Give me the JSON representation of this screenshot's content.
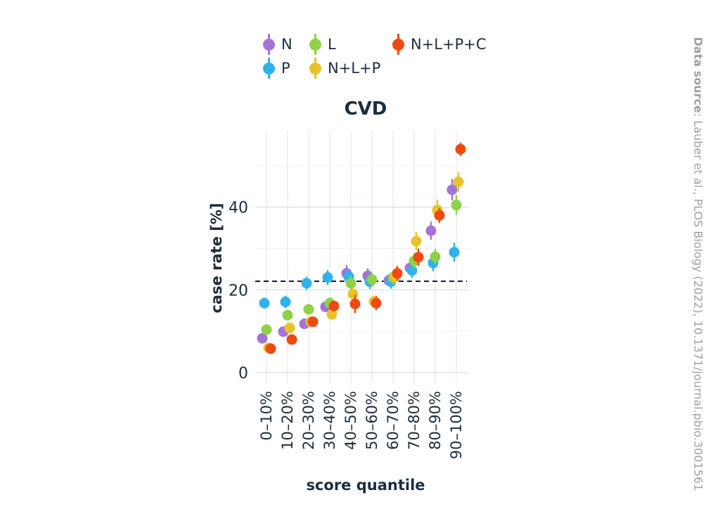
{
  "chart_data": {
    "type": "scatter",
    "title": "CVD",
    "xlabel": "score quantile",
    "ylabel": "case rate [%]",
    "categories": [
      "0–10%",
      "10–20%",
      "20–30%",
      "30–40%",
      "40–50%",
      "50–60%",
      "60–70%",
      "70–80%",
      "80–90%",
      "90–100%"
    ],
    "yticks": [
      0,
      20,
      40
    ],
    "ylim": [
      0,
      58
    ],
    "reference_line": 22.1,
    "grid": true,
    "legend_position": "top",
    "series": [
      {
        "name": "N",
        "color": "#a374d6",
        "values": [
          8.3,
          9.9,
          11.8,
          15.9,
          24.0,
          23.4,
          22.3,
          25.3,
          34.3,
          44.2
        ],
        "err": [
          0.8,
          0.8,
          0.9,
          1.2,
          2.0,
          1.8,
          1.5,
          1.7,
          2.2,
          2.6
        ]
      },
      {
        "name": "P",
        "color": "#2fb2ed",
        "values": [
          16.8,
          17.1,
          21.6,
          23.0,
          23.2,
          22.0,
          22.0,
          24.7,
          26.5,
          29.1
        ],
        "err": [
          1.3,
          1.5,
          1.6,
          1.8,
          1.8,
          1.8,
          1.7,
          1.8,
          2.0,
          2.3
        ]
      },
      {
        "name": "L",
        "color": "#8ed147",
        "values": [
          10.4,
          13.9,
          15.3,
          16.8,
          21.6,
          22.5,
          23.0,
          27.0,
          28.0,
          40.5
        ],
        "err": [
          1.1,
          1.3,
          1.3,
          1.4,
          1.8,
          1.7,
          1.6,
          1.8,
          1.9,
          2.4
        ]
      },
      {
        "name": "N+L+P",
        "color": "#e8c22a",
        "values": [
          6.0,
          10.8,
          12.3,
          14.1,
          19.0,
          17.2,
          23.2,
          31.8,
          39.3,
          46.1
        ],
        "err": [
          0.8,
          0.9,
          1.0,
          1.2,
          1.6,
          1.4,
          1.5,
          2.2,
          2.5,
          2.4
        ]
      },
      {
        "name": "N+L+P+C",
        "color": "#ef4a12",
        "values": [
          5.8,
          8.0,
          12.3,
          16.1,
          16.6,
          16.8,
          24.0,
          27.9,
          38.0,
          54.0
        ],
        "err": [
          1.2,
          1.0,
          1.0,
          1.3,
          2.2,
          1.7,
          1.8,
          2.1,
          1.8,
          1.6
        ]
      }
    ]
  },
  "source": {
    "label": "Data source",
    "text": ": Lauber et al., PLOS Biology (2022), 10.1371/journal.pbio.3001561"
  }
}
